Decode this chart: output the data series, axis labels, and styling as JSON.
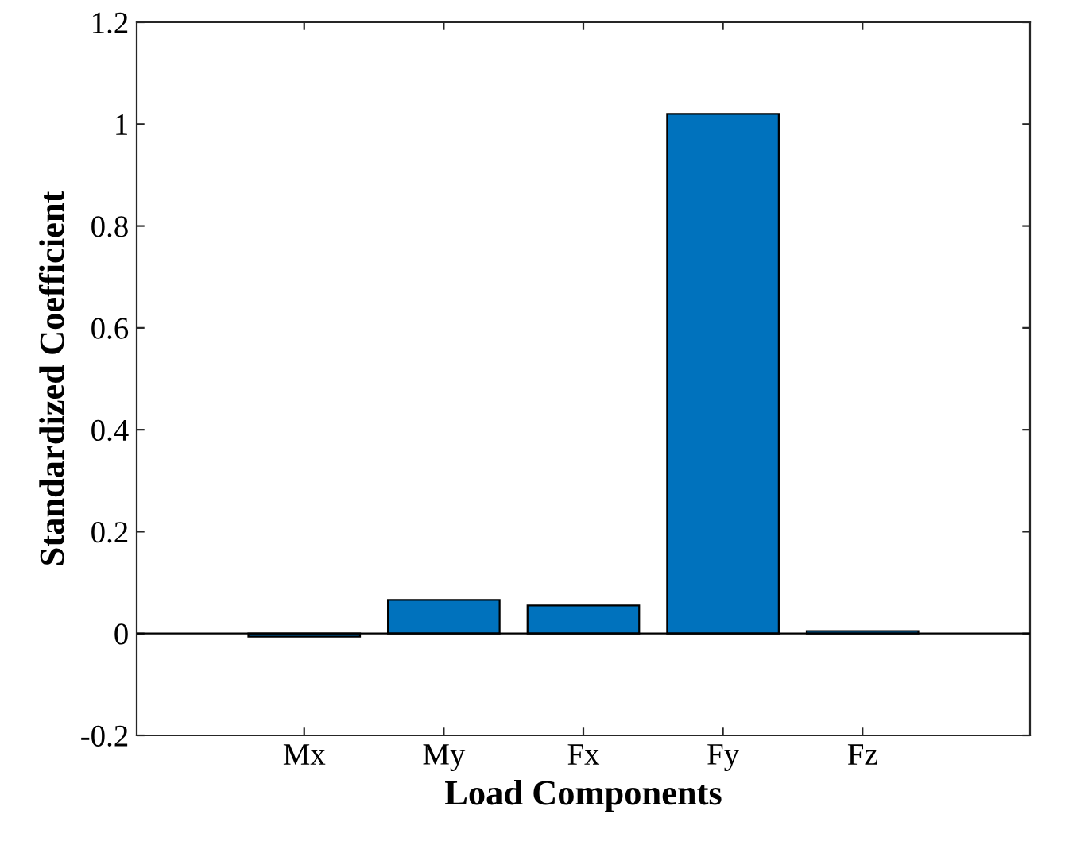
{
  "chart_data": {
    "type": "bar",
    "xlabel": "Load Components",
    "ylabel": "Standardized Coefficient",
    "categories": [
      "Mx",
      "My",
      "Fx",
      "Fy",
      "Fz"
    ],
    "values": [
      -0.006,
      0.066,
      0.055,
      1.02,
      0.005
    ],
    "color": "#0072bd",
    "ylim": [
      -0.2,
      1.2
    ],
    "yticks": [
      {
        "value": -0.2,
        "label": "-0.2"
      },
      0,
      0.2,
      0.4,
      0.6,
      0.8,
      1,
      1.2
    ],
    "ref_lines": [
      {
        "axis": "y",
        "value": 0,
        "color": "#000000"
      }
    ]
  }
}
